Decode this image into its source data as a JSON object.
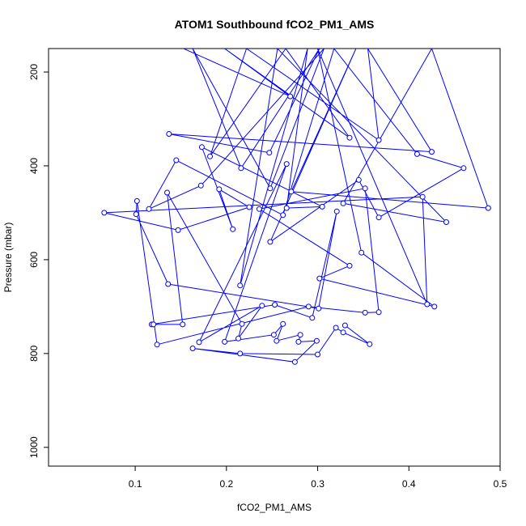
{
  "chart_data": {
    "type": "line",
    "title": "ATOM1 Southbound fCO2_PM1_AMS",
    "xlabel": "fCO2_PM1_AMS",
    "ylabel": "Pressure (mbar)",
    "xlim": [
      0.005,
      0.5
    ],
    "ylim": [
      1040,
      150
    ],
    "y_reversed": true,
    "x_ticks": [
      0.1,
      0.2,
      0.3,
      0.4,
      0.5
    ],
    "y_ticks": [
      200,
      400,
      600,
      800,
      1000
    ],
    "grid": false,
    "legend": "none",
    "series_color": "#0000ff",
    "marker": "open-circle",
    "off_chart_note": "segments exiting the top are clipped at the plot boundary",
    "points": [
      {
        "x": 0.153,
        "y": 150
      },
      {
        "x": 0.27,
        "y": 252
      },
      {
        "x": 0.198,
        "y": 150
      },
      {
        "x": 0.335,
        "y": 340
      },
      {
        "x": 0.265,
        "y": 150
      },
      {
        "x": 0.182,
        "y": 380
      },
      {
        "x": 0.222,
        "y": 150
      },
      {
        "x": 0.367,
        "y": 345
      },
      {
        "x": 0.355,
        "y": 150
      },
      {
        "x": 0.425,
        "y": 370
      },
      {
        "x": 0.137,
        "y": 332
      },
      {
        "x": 0.247,
        "y": 372
      },
      {
        "x": 0.302,
        "y": 150
      },
      {
        "x": 0.216,
        "y": 405
      },
      {
        "x": 0.163,
        "y": 150
      },
      {
        "x": 0.248,
        "y": 448
      },
      {
        "x": 0.307,
        "y": 150
      },
      {
        "x": 0.172,
        "y": 442
      },
      {
        "x": 0.115,
        "y": 492
      },
      {
        "x": 0.145,
        "y": 388
      },
      {
        "x": 0.262,
        "y": 505
      },
      {
        "x": 0.318,
        "y": 150
      },
      {
        "x": 0.409,
        "y": 375
      },
      {
        "x": 0.46,
        "y": 405
      },
      {
        "x": 0.367,
        "y": 510
      },
      {
        "x": 0.345,
        "y": 430
      },
      {
        "x": 0.248,
        "y": 562
      },
      {
        "x": 0.342,
        "y": 150
      },
      {
        "x": 0.271,
        "y": 455
      },
      {
        "x": 0.487,
        "y": 490
      },
      {
        "x": 0.425,
        "y": 150
      },
      {
        "x": 0.328,
        "y": 480
      },
      {
        "x": 0.441,
        "y": 520
      },
      {
        "x": 0.256,
        "y": 150
      },
      {
        "x": 0.215,
        "y": 655
      },
      {
        "x": 0.289,
        "y": 150
      },
      {
        "x": 0.266,
        "y": 490
      },
      {
        "x": 0.305,
        "y": 487
      },
      {
        "x": 0.173,
        "y": 360
      },
      {
        "x": 0.207,
        "y": 535
      },
      {
        "x": 0.192,
        "y": 450
      },
      {
        "x": 0.225,
        "y": 488
      },
      {
        "x": 0.147,
        "y": 537
      },
      {
        "x": 0.066,
        "y": 500
      },
      {
        "x": 0.415,
        "y": 466
      },
      {
        "x": 0.42,
        "y": 695
      },
      {
        "x": 0.3,
        "y": 150
      },
      {
        "x": 0.348,
        "y": 585
      },
      {
        "x": 0.428,
        "y": 700
      },
      {
        "x": 0.302,
        "y": 640
      },
      {
        "x": 0.335,
        "y": 613
      },
      {
        "x": 0.236,
        "y": 492
      },
      {
        "x": 0.352,
        "y": 448
      },
      {
        "x": 0.367,
        "y": 712
      },
      {
        "x": 0.352,
        "y": 713
      },
      {
        "x": 0.29,
        "y": 700
      },
      {
        "x": 0.124,
        "y": 781
      },
      {
        "x": 0.102,
        "y": 475
      },
      {
        "x": 0.101,
        "y": 503
      },
      {
        "x": 0.136,
        "y": 652
      },
      {
        "x": 0.301,
        "y": 704
      },
      {
        "x": 0.321,
        "y": 497
      },
      {
        "x": 0.294,
        "y": 724
      },
      {
        "x": 0.253,
        "y": 696
      },
      {
        "x": 0.118,
        "y": 738
      },
      {
        "x": 0.12,
        "y": 738
      },
      {
        "x": 0.152,
        "y": 738
      },
      {
        "x": 0.135,
        "y": 457
      },
      {
        "x": 0.217,
        "y": 737
      },
      {
        "x": 0.213,
        "y": 768
      },
      {
        "x": 0.239,
        "y": 698
      },
      {
        "x": 0.17,
        "y": 776
      },
      {
        "x": 0.266,
        "y": 396
      },
      {
        "x": 0.198,
        "y": 775
      },
      {
        "x": 0.252,
        "y": 760
      },
      {
        "x": 0.262,
        "y": 737
      },
      {
        "x": 0.255,
        "y": 773
      },
      {
        "x": 0.281,
        "y": 760
      },
      {
        "x": 0.279,
        "y": 775
      },
      {
        "x": 0.299,
        "y": 773
      },
      {
        "x": 0.275,
        "y": 818
      },
      {
        "x": 0.163,
        "y": 789
      },
      {
        "x": 0.215,
        "y": 800
      },
      {
        "x": 0.3,
        "y": 802
      },
      {
        "x": 0.32,
        "y": 745
      },
      {
        "x": 0.328,
        "y": 755
      },
      {
        "x": 0.357,
        "y": 780
      },
      {
        "x": 0.33,
        "y": 740
      }
    ]
  }
}
